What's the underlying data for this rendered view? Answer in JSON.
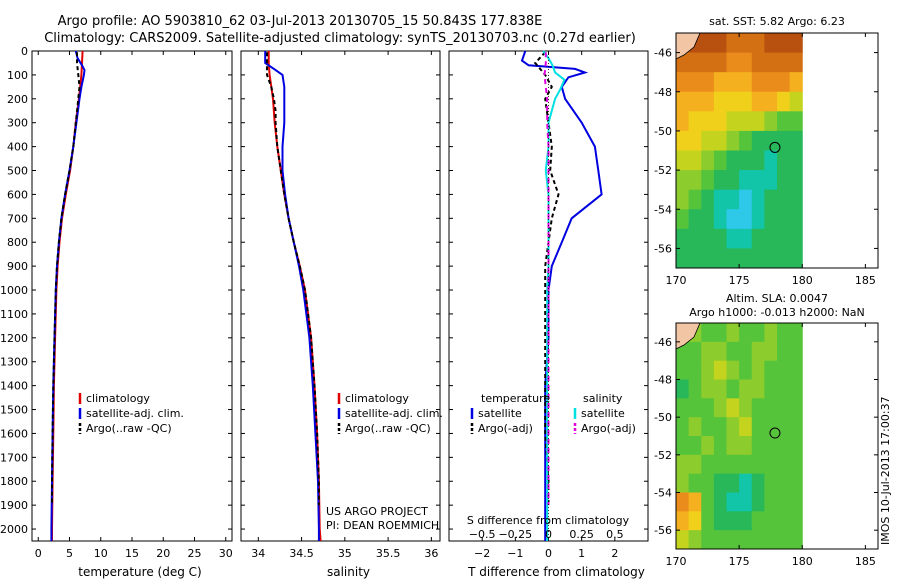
{
  "figure": {
    "title_line1": "Argo profile: AO 5903810_62 03-Jul-2013 20130705_15 50.843S 177.838E",
    "title_line2": "Climatology: CARS2009. Satellite-adjusted climatology: synTS_20130703.nc (0.27d earlier)",
    "credit_line1": "US ARGO PROJECT",
    "credit_line2": "PI: DEAN ROEMMICH",
    "stamp": "IMOS 10-Jul-2013 17:00:37"
  },
  "colors": {
    "climatology": "#e00000",
    "satellite": "#0000e0",
    "argo": "#000000",
    "satellite_s": "#00e0e0",
    "argo_s": "#e000e0"
  },
  "chart_data": [
    {
      "type": "line",
      "id": "temperature",
      "xlabel": "temperature (deg C)",
      "ylabel": "",
      "xlim": [
        -1,
        31
      ],
      "ylim": [
        2050,
        0
      ],
      "x_ticks": [
        0,
        5,
        10,
        15,
        20,
        25,
        30
      ],
      "y_ticks": [
        0,
        100,
        200,
        300,
        400,
        500,
        600,
        700,
        800,
        900,
        1000,
        1100,
        1200,
        1300,
        1400,
        1500,
        1600,
        1700,
        1800,
        1900,
        2000
      ],
      "legend": [
        "climatology",
        "satellite-adj. clim.",
        "Argo(..raw -QC)"
      ],
      "series": [
        {
          "name": "climatology",
          "color_key": "climatology",
          "dash": "",
          "depth": [
            0,
            50,
            100,
            200,
            300,
            400,
            500,
            600,
            700,
            800,
            900,
            1000,
            1200,
            1400,
            1600,
            1800,
            2000,
            2050
          ],
          "values": [
            7.1,
            7.0,
            6.9,
            6.5,
            6.0,
            5.6,
            5.1,
            4.4,
            3.8,
            3.4,
            3.1,
            2.9,
            2.7,
            2.5,
            2.4,
            2.3,
            2.2,
            2.2
          ]
        },
        {
          "name": "satellite-adj. clim.",
          "color_key": "satellite",
          "dash": "",
          "depth": [
            0,
            30,
            60,
            80,
            100,
            150,
            200,
            300,
            400,
            500,
            600,
            700,
            800,
            900,
            1000,
            1200,
            1400,
            1600,
            1800,
            2000,
            2050
          ],
          "values": [
            6.0,
            6.3,
            7.0,
            7.4,
            7.3,
            6.9,
            6.6,
            6.1,
            5.6,
            5.0,
            4.3,
            3.7,
            3.3,
            3.0,
            2.8,
            2.6,
            2.4,
            2.3,
            2.2,
            2.1,
            2.1
          ]
        },
        {
          "name": "Argo(..raw -QC)",
          "color_key": "argo",
          "dash": "4,3",
          "depth": [
            5,
            50,
            100,
            150,
            200,
            300,
            400,
            500,
            600,
            700,
            800,
            900,
            1000,
            1200,
            1400,
            1600,
            1800,
            1900
          ],
          "values": [
            6.2,
            6.2,
            6.4,
            6.6,
            6.4,
            6.0,
            5.6,
            5.0,
            4.3,
            3.7,
            3.3,
            3.0,
            2.8,
            2.6,
            2.4,
            2.3,
            2.2,
            2.2
          ]
        }
      ]
    },
    {
      "type": "line",
      "id": "salinity",
      "xlabel": "salinity",
      "ylabel": "",
      "xlim": [
        33.8,
        36.1
      ],
      "ylim": [
        2050,
        0
      ],
      "x_ticks": [
        34,
        34.5,
        35,
        35.5,
        36
      ],
      "legend": [
        "climatology",
        "satellite-adj. clim.",
        "Argo(..raw -QC)"
      ],
      "series": [
        {
          "name": "climatology",
          "color_key": "climatology",
          "dash": "",
          "depth": [
            0,
            50,
            100,
            150,
            200,
            300,
            400,
            500,
            600,
            700,
            800,
            900,
            1000,
            1200,
            1400,
            1600,
            1800,
            2000,
            2050
          ],
          "values": [
            34.12,
            34.12,
            34.13,
            34.15,
            34.17,
            34.19,
            34.22,
            34.26,
            34.3,
            34.35,
            34.41,
            34.48,
            34.54,
            34.61,
            34.65,
            34.68,
            34.7,
            34.71,
            34.72
          ]
        },
        {
          "name": "satellite-adj. clim.",
          "color_key": "satellite",
          "dash": "",
          "depth": [
            0,
            50,
            80,
            100,
            150,
            200,
            300,
            400,
            500,
            600,
            700,
            800,
            900,
            1000,
            1200,
            1400,
            1600,
            1800,
            2000,
            2050
          ],
          "values": [
            34.08,
            34.08,
            34.2,
            34.28,
            34.3,
            34.3,
            34.3,
            34.28,
            34.28,
            34.31,
            34.35,
            34.41,
            34.47,
            34.52,
            34.59,
            34.63,
            34.66,
            34.69,
            34.7,
            34.7
          ]
        },
        {
          "name": "Argo(..raw -QC)",
          "color_key": "argo",
          "dash": "4,3",
          "depth": [
            5,
            100,
            150,
            200,
            250,
            300,
            400,
            500,
            600,
            700,
            800,
            900,
            1000,
            1200,
            1400,
            1600,
            1800,
            1900
          ],
          "values": [
            34.1,
            34.1,
            34.15,
            34.18,
            34.2,
            34.2,
            34.22,
            34.26,
            34.3,
            34.35,
            34.41,
            34.48,
            34.54,
            34.61,
            34.65,
            34.68,
            34.7,
            34.7
          ]
        }
      ]
    },
    {
      "type": "line",
      "id": "difference",
      "xlabel": "T difference from climatology",
      "xlabel_top": "S difference from climatology",
      "ylabel": "",
      "xlim": [
        -3,
        3
      ],
      "ylim": [
        2050,
        0
      ],
      "x_ticks": [
        -2,
        -1,
        0,
        1,
        2
      ],
      "x_tick_labels": [
        "−2",
        "−1",
        "0",
        "1",
        "2"
      ],
      "s_ticks": [
        -0.5,
        -0.25,
        0,
        0.25,
        0.5
      ],
      "s_tick_labels": [
        "−0.5",
        "−0.25",
        "0",
        "0.25",
        "0.5"
      ],
      "s_xlim": [
        -0.75,
        0.75
      ],
      "legend_t_title": "temperature",
      "legend_s_title": "salinity",
      "legend_t": [
        "satellite",
        "Argo(-adj)"
      ],
      "legend_s": [
        "satellite",
        "Argo(-adj)"
      ],
      "series": [
        {
          "name": "T satellite",
          "color_key": "satellite",
          "dash": "",
          "depth": [
            0,
            40,
            60,
            75,
            90,
            110,
            150,
            200,
            300,
            400,
            500,
            600,
            700,
            800,
            900,
            1000,
            1200,
            1400,
            1600,
            1800,
            2000,
            2050
          ],
          "values": [
            -0.7,
            -0.8,
            -0.6,
            0.8,
            1.1,
            0.6,
            0.4,
            0.5,
            1.0,
            1.4,
            1.5,
            1.6,
            0.7,
            0.4,
            0.1,
            0.0,
            0.0,
            -0.1,
            -0.1,
            -0.1,
            -0.1,
            -0.1
          ]
        },
        {
          "name": "T Argo(-adj)",
          "color_key": "argo",
          "dash": "4,3",
          "depth": [
            5,
            50,
            100,
            150,
            200,
            300,
            400,
            500,
            600,
            700,
            800,
            900,
            1000,
            1200,
            1400,
            1600,
            1800,
            1900
          ],
          "values": [
            -0.1,
            -0.4,
            -0.1,
            0.1,
            -0.1,
            0.0,
            0.1,
            0.05,
            0.3,
            0.1,
            0.0,
            -0.1,
            -0.1,
            -0.1,
            -0.1,
            -0.1,
            0.0,
            0.0
          ]
        },
        {
          "name": "S satellite",
          "color_key": "satellite_s",
          "dash": "",
          "depth": [
            0,
            30,
            60,
            90,
            120,
            160,
            200,
            300,
            400,
            500,
            600,
            700,
            800,
            900,
            1000,
            1200,
            1400,
            1600,
            1800,
            2000,
            2050
          ],
          "values": [
            -0.04,
            0.0,
            0.03,
            0.05,
            0.12,
            0.09,
            0.05,
            0.0,
            0.0,
            -0.02,
            0.0,
            0.0,
            0.0,
            0.0,
            -0.01,
            -0.01,
            -0.01,
            -0.01,
            -0.01,
            -0.01,
            -0.01
          ]
        },
        {
          "name": "S Argo(-adj)",
          "color_key": "argo_s",
          "dash": "5,4",
          "depth": [
            5,
            50,
            100,
            150,
            200,
            250,
            300,
            400,
            500,
            600,
            700,
            800,
            900,
            1000,
            1200,
            1400,
            1600,
            1800,
            1900
          ],
          "values": [
            -0.02,
            -0.02,
            -0.03,
            -0.02,
            -0.01,
            -0.01,
            -0.01,
            0.0,
            0.0,
            0.0,
            0.0,
            0.0,
            0.0,
            0.0,
            0.0,
            0.0,
            0.0,
            0.0,
            0.0
          ]
        }
      ]
    },
    {
      "type": "heatmap",
      "id": "sst_map",
      "title": "sat. SST: 5.82  Argo: 6.23",
      "xlim": [
        170,
        186
      ],
      "ylim": [
        -57,
        -45
      ],
      "x_ticks": [
        170,
        175,
        180,
        185
      ],
      "y_ticks": [
        -46,
        -48,
        -50,
        -52,
        -54,
        -56
      ],
      "data_xlim": [
        170,
        180
      ],
      "float_lon": 177.838,
      "float_lat": -50.843,
      "palette": [
        "#2ec8e8",
        "#12c4a8",
        "#28b85a",
        "#56c43a",
        "#8ccc2c",
        "#c4d41e",
        "#f0d01a",
        "#f4b01e",
        "#ea8c1c",
        "#d47014",
        "#b85010"
      ],
      "grid": [
        [
          9,
          10,
          10,
          10,
          9,
          9,
          9,
          10,
          10,
          10
        ],
        [
          9,
          9,
          9,
          9,
          8,
          8,
          9,
          9,
          9,
          9
        ],
        [
          8,
          8,
          8,
          7,
          7,
          7,
          8,
          8,
          8,
          7
        ],
        [
          7,
          7,
          7,
          6,
          6,
          6,
          7,
          7,
          6,
          5
        ],
        [
          7,
          6,
          6,
          6,
          5,
          5,
          5,
          4,
          3,
          3
        ],
        [
          6,
          6,
          5,
          5,
          4,
          3,
          2,
          2,
          2,
          2
        ],
        [
          5,
          5,
          4,
          3,
          2,
          2,
          2,
          1,
          2,
          2
        ],
        [
          4,
          4,
          3,
          2,
          2,
          1,
          1,
          1,
          2,
          2
        ],
        [
          4,
          3,
          2,
          1,
          1,
          0,
          1,
          2,
          2,
          2
        ],
        [
          3,
          2,
          2,
          1,
          0,
          0,
          1,
          2,
          2,
          2
        ],
        [
          2,
          2,
          2,
          2,
          1,
          1,
          2,
          2,
          2,
          2
        ],
        [
          2,
          2,
          2,
          2,
          2,
          2,
          2,
          2,
          2,
          2
        ]
      ]
    },
    {
      "type": "heatmap",
      "id": "sla_map",
      "title_line1": "Altim. SLA: 0.0047",
      "title_line2": "Argo h1000: -0.013 h2000: NaN",
      "xlim": [
        170,
        186
      ],
      "ylim": [
        -57,
        -45
      ],
      "x_ticks": [
        170,
        175,
        180,
        185
      ],
      "y_ticks": [
        -46,
        -48,
        -50,
        -52,
        -54,
        -56
      ],
      "data_xlim": [
        170,
        180
      ],
      "float_lon": 177.838,
      "float_lat": -50.843,
      "palette": [
        "#2ec8e8",
        "#12c4a8",
        "#28b85a",
        "#56c43a",
        "#8ccc2c",
        "#c4d41e",
        "#f0d01a",
        "#f4b01e",
        "#ea8c1c",
        "#d47014",
        "#b85010"
      ],
      "grid": [
        [
          3,
          4,
          3,
          3,
          4,
          3,
          3,
          4,
          3,
          3
        ],
        [
          3,
          3,
          4,
          4,
          3,
          3,
          4,
          4,
          3,
          3
        ],
        [
          3,
          3,
          4,
          5,
          4,
          3,
          4,
          3,
          3,
          3
        ],
        [
          2,
          3,
          4,
          4,
          3,
          4,
          4,
          3,
          3,
          3
        ],
        [
          3,
          3,
          3,
          4,
          5,
          4,
          3,
          3,
          3,
          3
        ],
        [
          3,
          4,
          3,
          3,
          4,
          5,
          3,
          3,
          3,
          3
        ],
        [
          3,
          3,
          4,
          3,
          4,
          4,
          3,
          3,
          3,
          3
        ],
        [
          4,
          4,
          3,
          3,
          3,
          3,
          3,
          3,
          3,
          3
        ],
        [
          4,
          3,
          3,
          2,
          2,
          1,
          2,
          3,
          3,
          3
        ],
        [
          8,
          7,
          3,
          2,
          1,
          1,
          2,
          3,
          3,
          3
        ],
        [
          7,
          6,
          3,
          2,
          2,
          2,
          3,
          3,
          3,
          3
        ],
        [
          5,
          4,
          3,
          3,
          3,
          3,
          3,
          3,
          3,
          3
        ]
      ]
    }
  ]
}
